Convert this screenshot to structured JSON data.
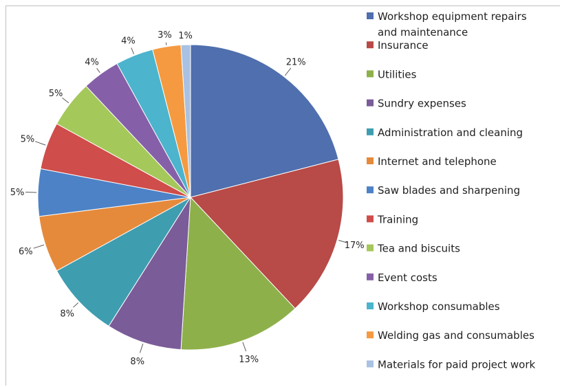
{
  "chart_data": {
    "type": "pie",
    "title": "",
    "categories": [
      "Workshop equipment repairs and maintenance",
      "Insurance",
      "Utilities",
      "Sundry expenses",
      "Administration and cleaning",
      "Internet and telephone",
      "Saw blades and sharpening",
      "Training",
      "Tea and biscuits",
      "Event costs",
      "Workshop consumables",
      "Welding gas and consumables",
      "Materials for paid project work"
    ],
    "values": [
      21,
      17,
      13,
      8,
      8,
      6,
      5,
      5,
      5,
      4,
      4,
      3,
      1
    ],
    "labels": [
      "21%",
      "17%",
      "13%",
      "8%",
      "8%",
      "6%",
      "5%",
      "5%",
      "5%",
      "4%",
      "4%",
      "3%",
      "1%"
    ],
    "colors": [
      "#4f6fae",
      "#b84a47",
      "#8eb04a",
      "#7a5c98",
      "#3f9db0",
      "#e58a3b",
      "#4d82c6",
      "#cf4d4a",
      "#a5c85a",
      "#8560a8",
      "#4cb4cc",
      "#f59a40",
      "#a9c1e2"
    ],
    "legend": {
      "position": "right",
      "entries": [
        [
          "Workshop equipment repairs",
          "and maintenance"
        ],
        [
          "Insurance"
        ],
        [
          "Utilities"
        ],
        [
          "Sundry expenses"
        ],
        [
          "Administration and cleaning"
        ],
        [
          "Internet and telephone"
        ],
        [
          "Saw blades and sharpening"
        ],
        [
          "Training"
        ],
        [
          "Tea and biscuits"
        ],
        [
          "Event costs"
        ],
        [
          "Workshop consumables"
        ],
        [
          "Welding gas and consumables"
        ],
        [
          "Materials for paid project work"
        ]
      ]
    },
    "start_angle_deg": 0,
    "direction": "clockwise"
  }
}
